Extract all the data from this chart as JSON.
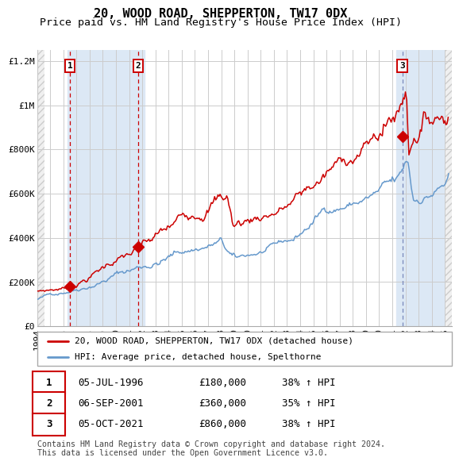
{
  "title": "20, WOOD ROAD, SHEPPERTON, TW17 0DX",
  "subtitle": "Price paid vs. HM Land Registry's House Price Index (HPI)",
  "xmin": 1994.0,
  "xmax": 2025.5,
  "ymin": 0,
  "ymax": 1250000,
  "yticks": [
    0,
    200000,
    400000,
    600000,
    800000,
    1000000,
    1200000
  ],
  "ytick_labels": [
    "£0",
    "£200K",
    "£400K",
    "£600K",
    "£800K",
    "£1M",
    "£1.2M"
  ],
  "xtick_years": [
    1994,
    1995,
    1996,
    1997,
    1998,
    1999,
    2000,
    2001,
    2002,
    2003,
    2004,
    2005,
    2006,
    2007,
    2008,
    2009,
    2010,
    2011,
    2012,
    2013,
    2014,
    2015,
    2016,
    2017,
    2018,
    2019,
    2020,
    2021,
    2022,
    2023,
    2024,
    2025
  ],
  "sale1_date": 1996.51,
  "sale1_price": 180000,
  "sale2_date": 2001.68,
  "sale2_price": 360000,
  "sale3_date": 2021.76,
  "sale3_price": 860000,
  "red_line_color": "#cc0000",
  "blue_line_color": "#6699cc",
  "bg_panel_color": "#dce8f5",
  "legend_line1": "20, WOOD ROAD, SHEPPERTON, TW17 0DX (detached house)",
  "legend_line2": "HPI: Average price, detached house, Spelthorne",
  "table_rows": [
    {
      "num": "1",
      "date": "05-JUL-1996",
      "price": "£180,000",
      "hpi": "38% ↑ HPI"
    },
    {
      "num": "2",
      "date": "06-SEP-2001",
      "price": "£360,000",
      "hpi": "35% ↑ HPI"
    },
    {
      "num": "3",
      "date": "05-OCT-2021",
      "price": "£860,000",
      "hpi": "38% ↑ HPI"
    }
  ],
  "footer": "Contains HM Land Registry data © Crown copyright and database right 2024.\nThis data is licensed under the Open Government Licence v3.0.",
  "title_fontsize": 11,
  "subtitle_fontsize": 9.5,
  "tick_fontsize": 8
}
